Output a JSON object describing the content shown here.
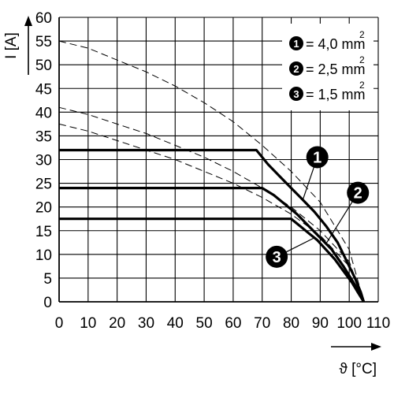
{
  "chart_data": {
    "type": "line",
    "ylabel": "I [A]",
    "xlabel": "ϑ [°C]",
    "xlim": [
      0,
      110
    ],
    "ylim": [
      0,
      60
    ],
    "x_ticks": [
      "0",
      "10",
      "20",
      "30",
      "40",
      "50",
      "60",
      "70",
      "80",
      "90",
      "100",
      "110"
    ],
    "y_ticks": [
      "0",
      "5",
      "10",
      "15",
      "20",
      "25",
      "30",
      "35",
      "40",
      "45",
      "50",
      "55",
      "60"
    ],
    "grid": true,
    "legend_position": "top-right",
    "legend": [
      {
        "marker": "1",
        "text": "= 4,0 mm",
        "sup": "2"
      },
      {
        "marker": "2",
        "text": "= 2,5 mm",
        "sup": "2"
      },
      {
        "marker": "3",
        "text": "= 1,5 mm",
        "sup": "2"
      }
    ],
    "series": [
      {
        "marker": "1",
        "style": "solid",
        "x": [
          0,
          68,
          72,
          76,
          80,
          84,
          88,
          92,
          96,
          100,
          102,
          104,
          105
        ],
        "y": [
          32,
          32,
          29,
          26.5,
          24,
          21.5,
          19,
          16,
          12.5,
          7.5,
          5,
          2,
          0
        ]
      },
      {
        "marker": "2",
        "style": "solid",
        "x": [
          0,
          70,
          74,
          78,
          82,
          86,
          90,
          94,
          98,
          101,
          103,
          105
        ],
        "y": [
          24,
          24,
          22.5,
          20.5,
          18.5,
          16,
          13.5,
          11,
          7.5,
          4.5,
          2.5,
          0
        ]
      },
      {
        "marker": "3",
        "style": "solid",
        "x": [
          0,
          80,
          83,
          86,
          89,
          92,
          95,
          98,
          101,
          103,
          105
        ],
        "y": [
          17.5,
          17.5,
          16,
          14.5,
          13,
          11,
          9,
          6.5,
          4,
          2,
          0
        ]
      },
      {
        "marker": "1",
        "style": "dashed",
        "x": [
          0,
          10,
          20,
          30,
          40,
          50,
          60,
          70,
          80,
          90,
          100,
          105
        ],
        "y": [
          55,
          53.5,
          51,
          48.5,
          45.5,
          42,
          38,
          33,
          27.5,
          21,
          11,
          0
        ]
      },
      {
        "marker": "2",
        "style": "dashed",
        "x": [
          0,
          10,
          20,
          30,
          40,
          50,
          60,
          70,
          80,
          90,
          100,
          105
        ],
        "y": [
          41,
          39.5,
          37.5,
          35.5,
          33,
          30.5,
          27.5,
          24,
          20,
          15,
          8.5,
          0
        ]
      },
      {
        "marker": "3",
        "style": "dashed",
        "x": [
          0,
          10,
          20,
          30,
          40,
          50,
          60,
          70,
          80,
          90,
          100,
          105
        ],
        "y": [
          37.5,
          36,
          34,
          32,
          30,
          27.5,
          25,
          22,
          18.5,
          14,
          7.5,
          0
        ]
      }
    ],
    "callouts": [
      {
        "marker": "1",
        "x": 89,
        "y": 30.5
      },
      {
        "marker": "2",
        "x": 103,
        "y": 23
      },
      {
        "marker": "3",
        "x": 75,
        "y": 9.5
      }
    ]
  }
}
